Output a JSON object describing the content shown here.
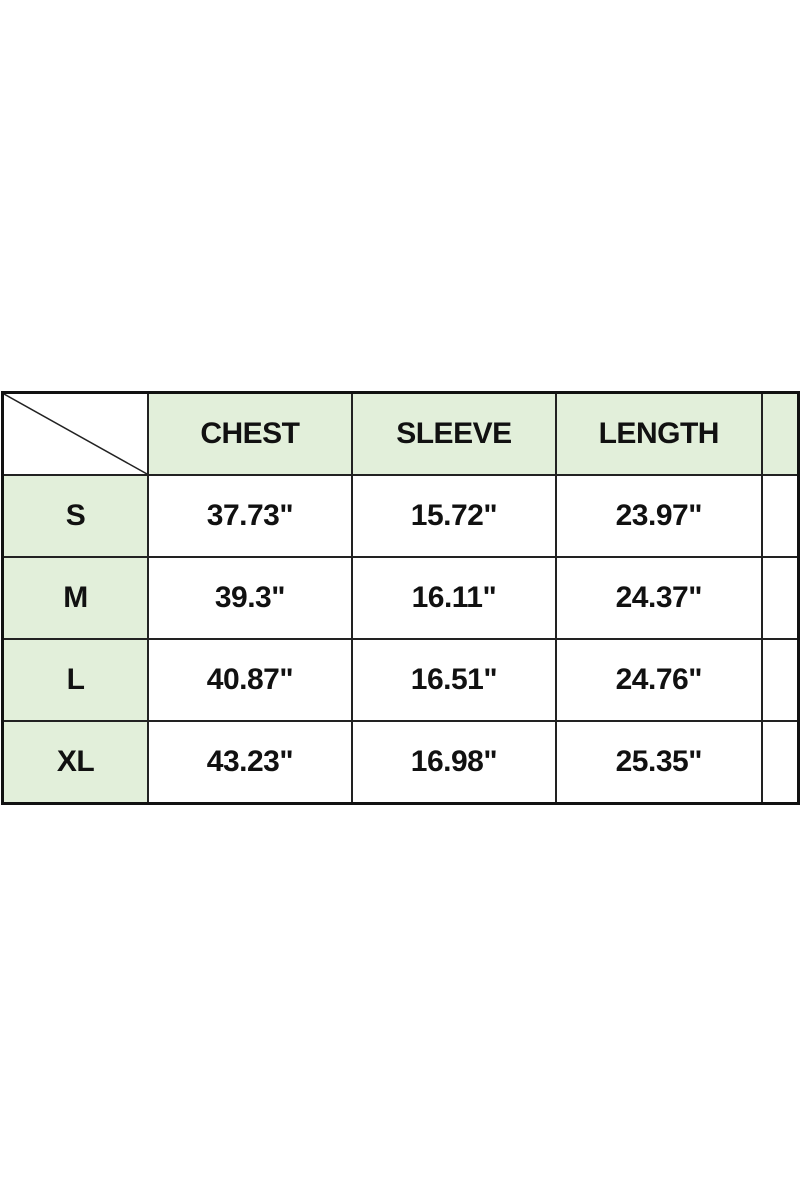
{
  "colors": {
    "header_fill": "#e2efda",
    "border": "#111111"
  },
  "table": {
    "columns": [
      "CHEST",
      "SLEEVE",
      "LENGTH",
      ""
    ],
    "rows": [
      {
        "size": "S",
        "values": [
          "37.73\"",
          "15.72\"",
          "23.97\"",
          ""
        ]
      },
      {
        "size": "M",
        "values": [
          "39.3\"",
          "16.11\"",
          "24.37\"",
          ""
        ]
      },
      {
        "size": "L",
        "values": [
          "40.87\"",
          "16.51\"",
          "24.76\"",
          ""
        ]
      },
      {
        "size": "XL",
        "values": [
          "43.23\"",
          "16.98\"",
          "25.35\"",
          ""
        ]
      }
    ]
  }
}
